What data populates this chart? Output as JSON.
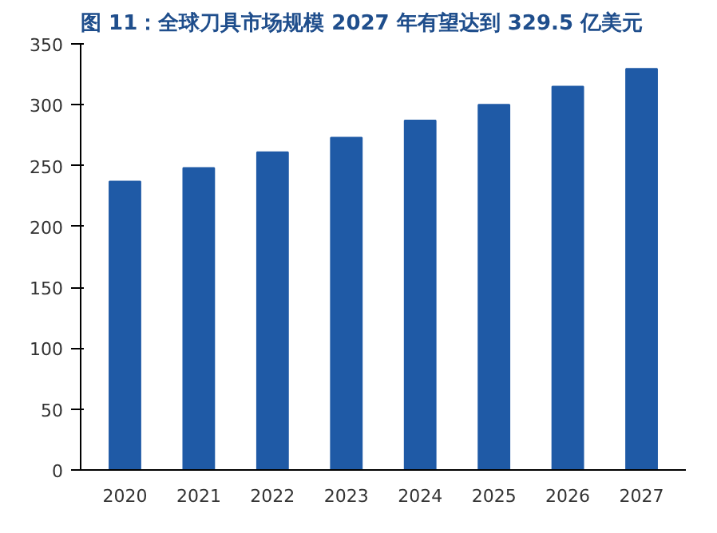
{
  "chart_data": {
    "type": "bar",
    "title": "图 11：全球刀具市场规模 2027 年有望达到 329.5 亿美元",
    "categories": [
      "2020",
      "2021",
      "2022",
      "2023",
      "2024",
      "2025",
      "2026",
      "2027"
    ],
    "values": [
      237,
      248,
      261,
      273,
      287,
      300,
      315,
      329.5
    ],
    "color": "#1f5aa6",
    "ylim": [
      0,
      350
    ],
    "yticks": [
      0,
      50,
      100,
      150,
      200,
      250,
      300,
      350
    ],
    "grid": false
  }
}
